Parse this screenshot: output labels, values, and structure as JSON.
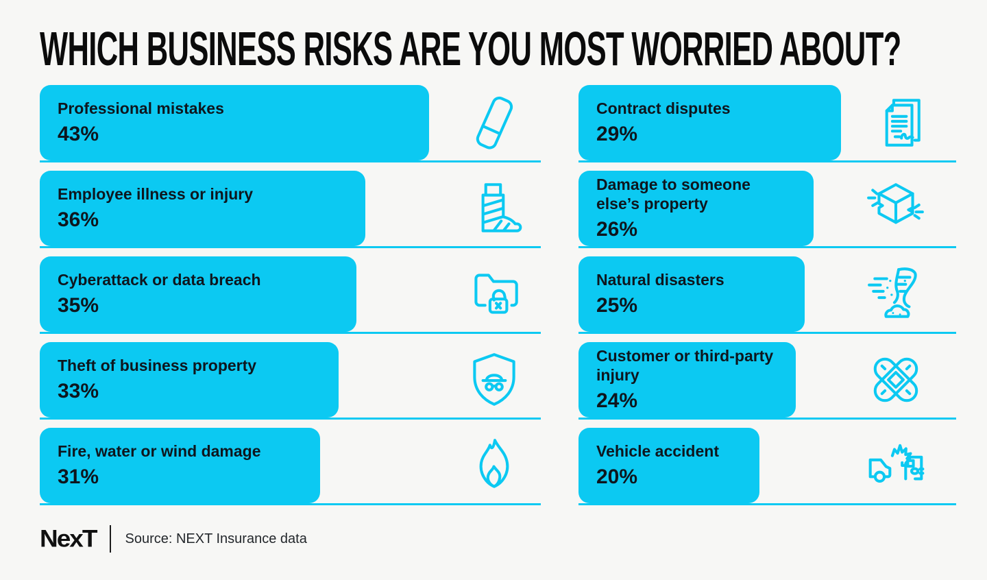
{
  "colors": {
    "accent": "#0cc9f2",
    "background": "#f7f7f5",
    "title": "#0b0b0b",
    "text": "#0e161e"
  },
  "footer": {
    "logo": "NexT",
    "source": "Source: NEXT Insurance data"
  },
  "chart_data": {
    "type": "bar",
    "orientation": "horizontal",
    "unit": "percent",
    "title": "WHICH BUSINESS RISKS ARE YOU MOST WORRIED ABOUT?",
    "value_range": [
      0,
      100
    ],
    "legend": "none",
    "columns": [
      {
        "name": "left",
        "items": [
          {
            "label": "Professional mistakes",
            "value": 43,
            "value_label": "43%",
            "icon": "eraser-icon"
          },
          {
            "label": "Employee illness or injury",
            "value": 36,
            "value_label": "36%",
            "icon": "leg-cast-icon"
          },
          {
            "label": "Cyberattack or data breach",
            "value": 35,
            "value_label": "35%",
            "icon": "folder-lock-icon"
          },
          {
            "label": "Theft of business property",
            "value": 33,
            "value_label": "33%",
            "icon": "thief-shield-icon"
          },
          {
            "label": "Fire, water or wind damage",
            "value": 31,
            "value_label": "31%",
            "icon": "flame-icon"
          }
        ]
      },
      {
        "name": "right",
        "items": [
          {
            "label": "Contract disputes",
            "value": 29,
            "value_label": "29%",
            "icon": "contract-icon"
          },
          {
            "label": "Damage to someone\nelse’s property",
            "value": 26,
            "value_label": "26%",
            "icon": "damaged-box-icon"
          },
          {
            "label": "Natural disasters",
            "value": 25,
            "value_label": "25%",
            "icon": "tornado-icon"
          },
          {
            "label": "Customer or third-party\ninjury",
            "value": 24,
            "value_label": "24%",
            "icon": "bandage-icon"
          },
          {
            "label": "Vehicle accident",
            "value": 20,
            "value_label": "20%",
            "icon": "vehicle-collision-icon"
          }
        ]
      }
    ]
  }
}
